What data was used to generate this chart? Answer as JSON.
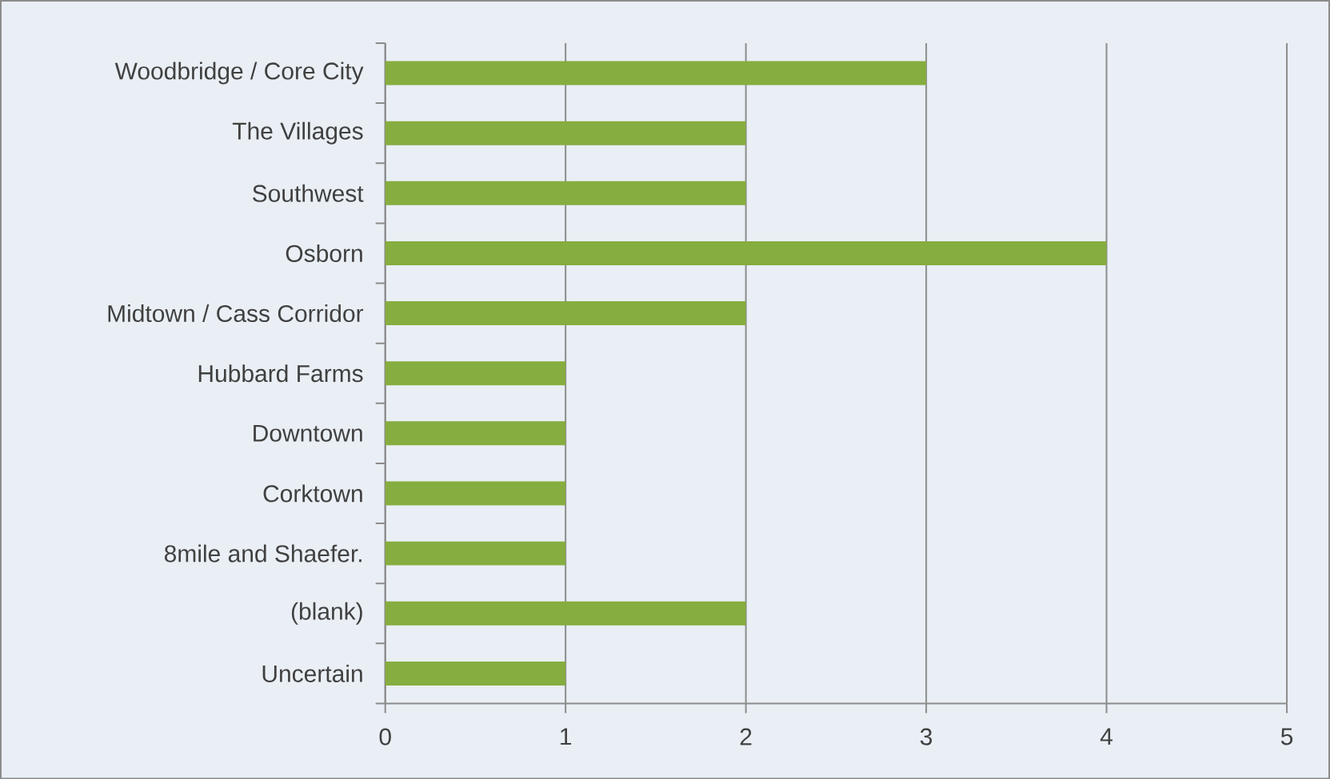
{
  "chart_data": {
    "type": "bar",
    "orientation": "horizontal",
    "categories": [
      "Woodbridge / Core City",
      "The Villages",
      "Southwest",
      "Osborn",
      "Midtown / Cass Corridor",
      "Hubbard Farms",
      "Downtown",
      "Corktown",
      "8mile and Shaefer.",
      "(blank)",
      "Uncertain"
    ],
    "values": [
      3,
      2,
      2,
      4,
      2,
      1,
      1,
      1,
      1,
      2,
      1
    ],
    "color": "#86ad3f",
    "xlim": [
      0,
      5
    ],
    "xticks": [
      0,
      1,
      2,
      3,
      4,
      5
    ],
    "grid": "x"
  }
}
